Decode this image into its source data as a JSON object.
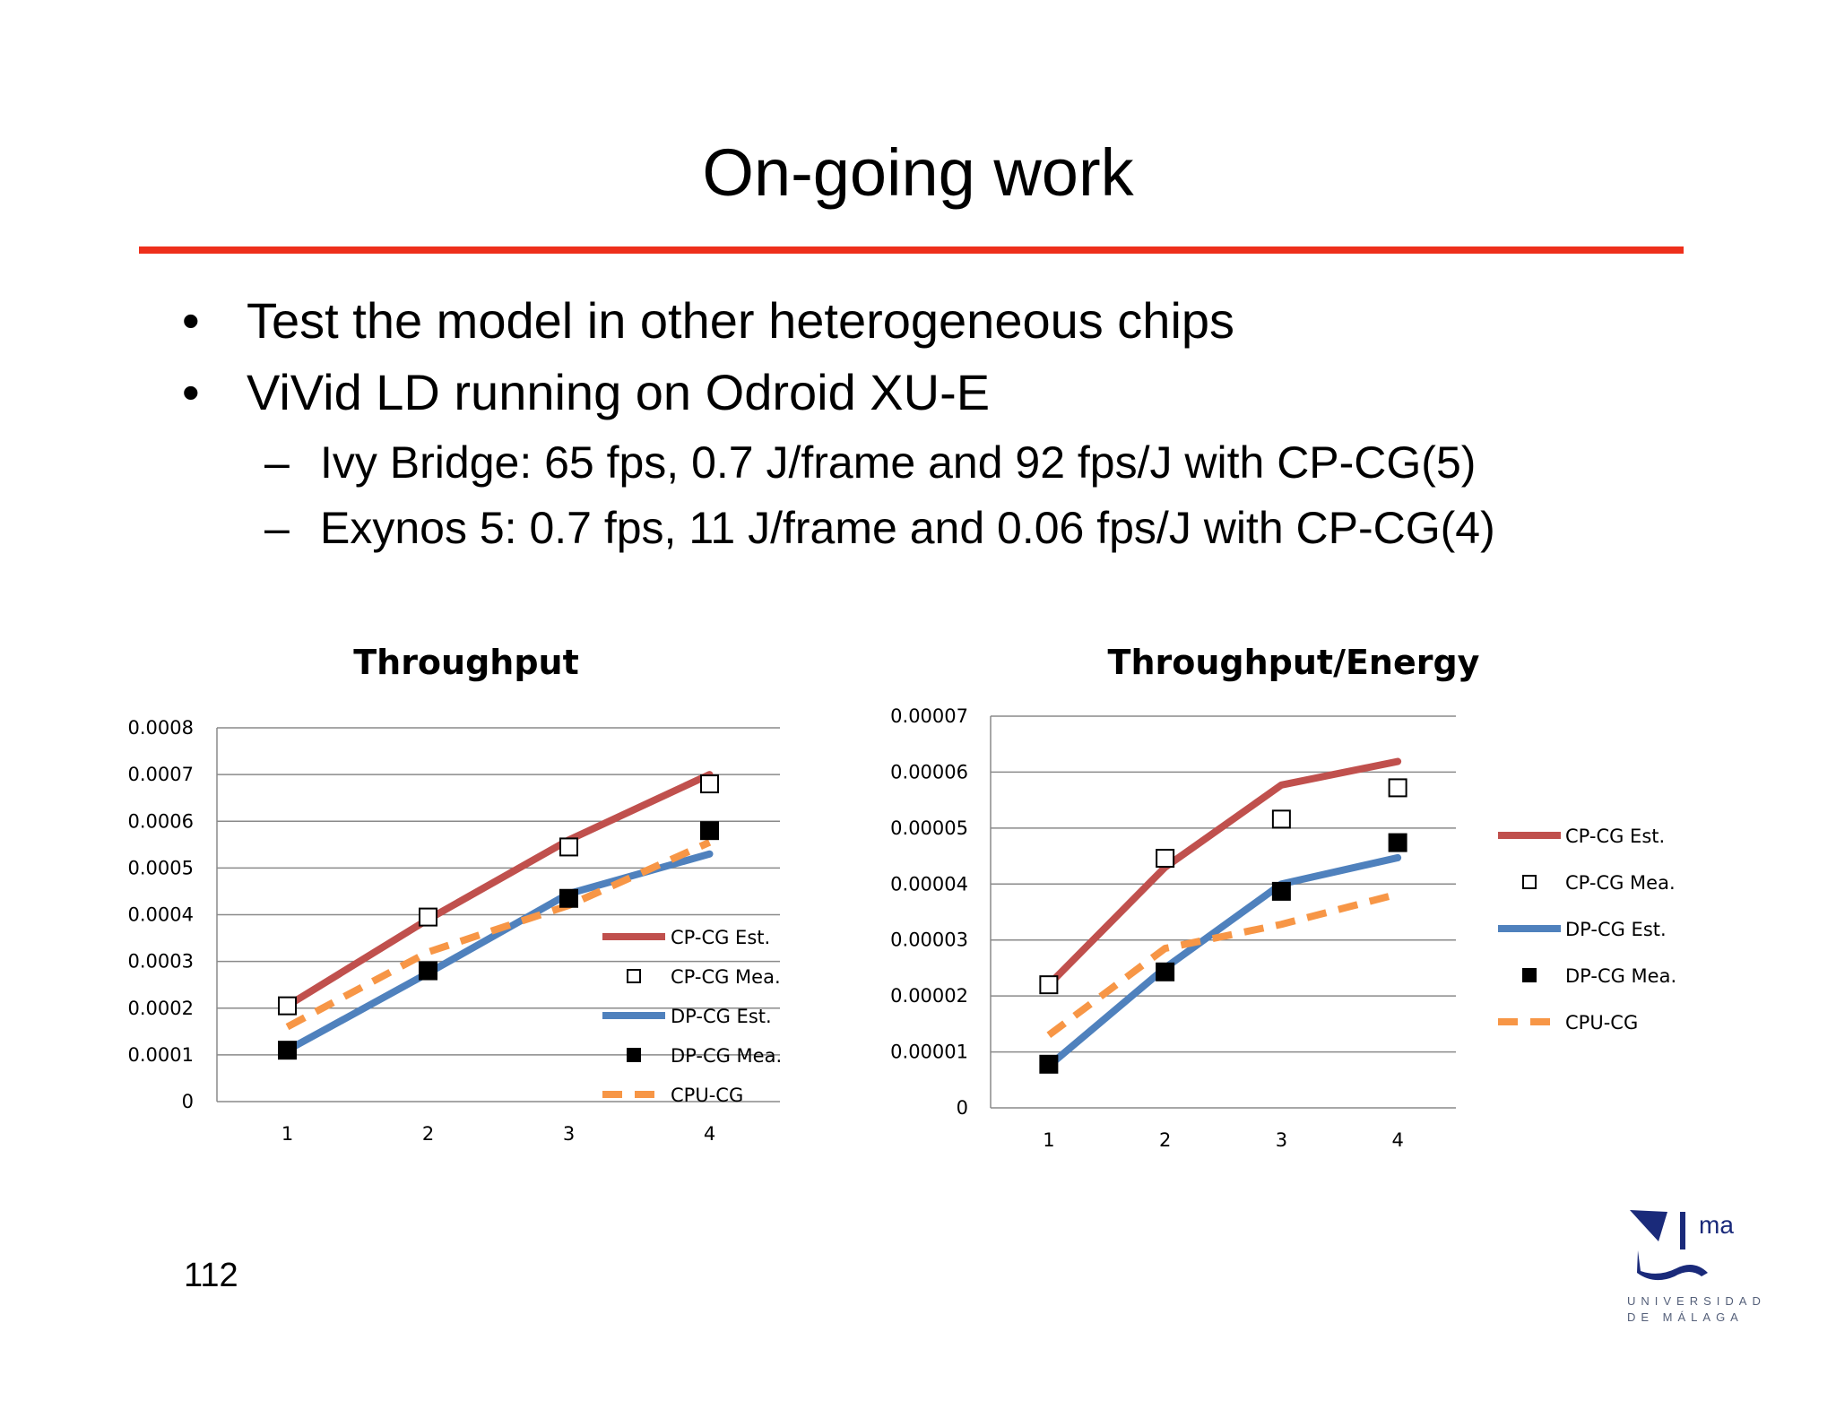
{
  "slide": {
    "title": "On-going work",
    "bullets": [
      "Test the model in other heterogeneous chips",
      "ViVid LD running on Odroid XU-E"
    ],
    "subbullets": [
      "Ivy Bridge: 65 fps,  0.7 J/frame and 92 fps/J with CP-CG(5)",
      "Exynos 5: 0.7 fps, 11 J/frame and 0.06 fps/J with CP-CG(4)"
    ],
    "bullet_mark": "•",
    "sub_mark": "–",
    "page_number": "112",
    "logo": {
      "text": "ma",
      "line1": "UNIVERSIDAD",
      "line2": "DE MÁLAGA",
      "color": "#1a2a7a"
    }
  },
  "colors": {
    "accent_rule": "#ee2f1b",
    "cp_est": "#c0504d",
    "dp_est": "#4f81bd",
    "cpu": "#f79646"
  },
  "chart_data": [
    {
      "type": "line",
      "title": "Throughput",
      "categories": [
        "1",
        "2",
        "3",
        "4"
      ],
      "ylim": [
        0,
        0.0008
      ],
      "yticks": [
        "0",
        "0.0001",
        "0.0002",
        "0.0003",
        "0.0004",
        "0.0005",
        "0.0006",
        "0.0007",
        "0.0008"
      ],
      "grid": true,
      "legend_position": "inside-bottom-right",
      "series": [
        {
          "name": "CP-CG Est.",
          "style": "line",
          "values": [
            0.000205,
            0.00039,
            0.00056,
            0.0007
          ]
        },
        {
          "name": "CP-CG Mea.",
          "style": "open-square",
          "values": [
            0.000205,
            0.000395,
            0.000545,
            0.00068
          ]
        },
        {
          "name": "DP-CG Est.",
          "style": "line",
          "values": [
            0.00011,
            0.000275,
            0.000445,
            0.00053
          ]
        },
        {
          "name": "DP-CG Mea.",
          "style": "filled-square",
          "values": [
            0.00011,
            0.00028,
            0.000435,
            0.00058
          ]
        },
        {
          "name": "CPU-CG",
          "style": "dashed",
          "values": [
            0.00016,
            0.00032,
            0.00042,
            0.000555
          ]
        }
      ]
    },
    {
      "type": "line",
      "title": "Throughput/Energy",
      "categories": [
        "1",
        "2",
        "3",
        "4"
      ],
      "ylim": [
        0,
        7e-05
      ],
      "yticks": [
        "0",
        "0.00001",
        "0.00002",
        "0.00003",
        "0.00004",
        "0.00005",
        "0.00006",
        "0.00007"
      ],
      "grid": true,
      "legend_position": "right",
      "series": [
        {
          "name": "CP-CG Est.",
          "style": "line",
          "values": [
            2.2e-05,
            4.3e-05,
            5.77e-05,
            6.19e-05
          ]
        },
        {
          "name": "CP-CG Mea.",
          "style": "open-square",
          "values": [
            2.2e-05,
            4.46e-05,
            5.16e-05,
            5.72e-05
          ]
        },
        {
          "name": "DP-CG Est.",
          "style": "line",
          "values": [
            7.5e-06,
            2.5e-05,
            4e-05,
            4.47e-05
          ]
        },
        {
          "name": "DP-CG Mea.",
          "style": "filled-square",
          "values": [
            7.8e-06,
            2.43e-05,
            3.87e-05,
            4.74e-05
          ]
        },
        {
          "name": "CPU-CG",
          "style": "dashed",
          "values": [
            1.3e-05,
            2.85e-05,
            3.28e-05,
            3.82e-05
          ]
        }
      ]
    }
  ]
}
